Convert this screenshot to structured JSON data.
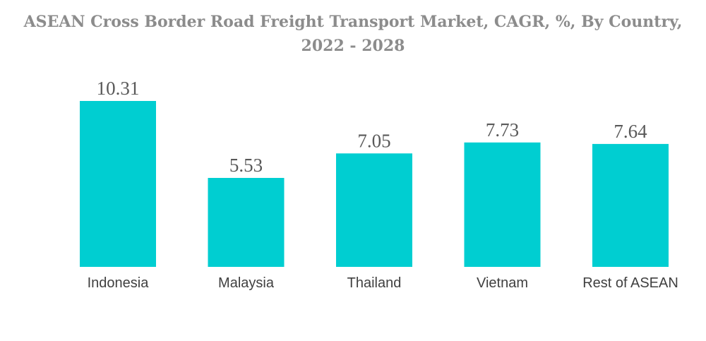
{
  "title_lines": [
    "ASEAN Cross Border Road Freight Transport Market, CAGR, %, By Country,",
    "2022 - 2028"
  ],
  "colors": {
    "bar": "#00ced1",
    "title": "#8c8c8c",
    "value_label": "#595959",
    "category_label": "#404040"
  },
  "chart_data": {
    "type": "bar",
    "title": "ASEAN Cross Border Road Freight Transport Market, CAGR, %, By Country, 2022 - 2028",
    "categories": [
      "Indonesia",
      "Malaysia",
      "Thailand",
      "Vietnam",
      "Rest of ASEAN"
    ],
    "values": [
      10.31,
      5.53,
      7.05,
      7.73,
      7.64
    ],
    "value_labels": [
      "10.31",
      "5.53",
      "7.05",
      "7.73",
      "7.64"
    ],
    "xlabel": "",
    "ylabel": "",
    "ylim": [
      0,
      10.31
    ],
    "grid": false,
    "legend": "none"
  }
}
